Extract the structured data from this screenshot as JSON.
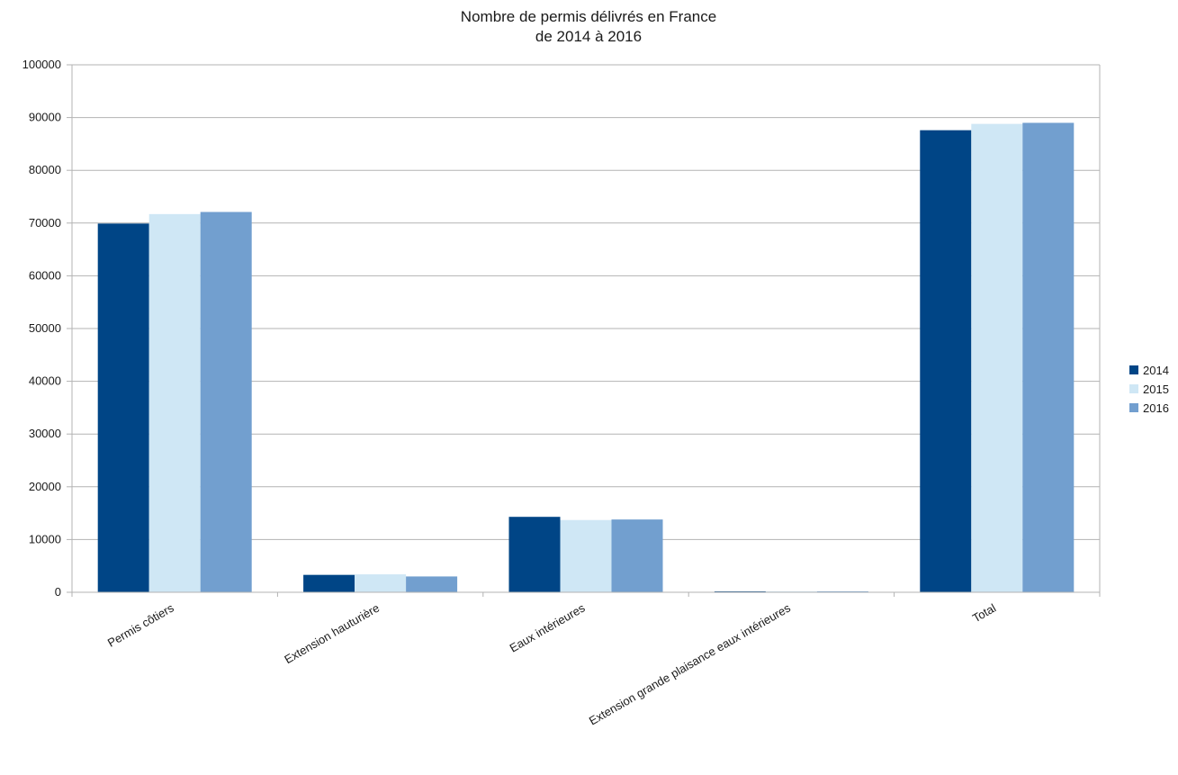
{
  "chart_data": {
    "type": "bar",
    "title": [
      "Nombre de permis délivrés en France",
      "de 2014 à 2016"
    ],
    "categories": [
      "Permis côtiers",
      "Extension hauturière",
      "Eaux intérieures",
      "Extension grande plaisance eaux intérieures",
      "Total"
    ],
    "series": [
      {
        "name": "2014",
        "color": "#004586",
        "values": [
          69900,
          3300,
          14300,
          150,
          87600
        ]
      },
      {
        "name": "2015",
        "color": "#cfe7f5",
        "values": [
          71700,
          3400,
          13700,
          100,
          88800
        ]
      },
      {
        "name": "2016",
        "color": "#729fcf",
        "values": [
          72100,
          3000,
          13800,
          150,
          89000
        ]
      }
    ],
    "ylim": [
      0,
      100000
    ],
    "yticks": [
      "0",
      "10000",
      "20000",
      "30000",
      "40000",
      "50000",
      "60000",
      "70000",
      "80000",
      "90000",
      "100000"
    ],
    "grid": true,
    "legend_position": "right",
    "xlabel": "",
    "ylabel": ""
  }
}
